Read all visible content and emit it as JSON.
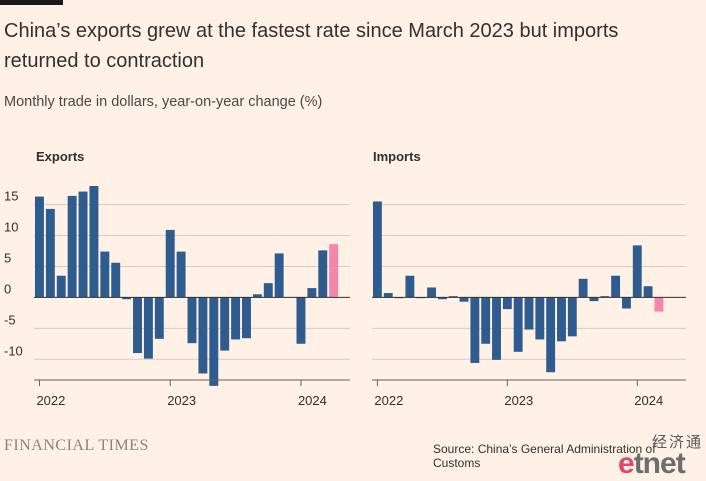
{
  "header": {
    "title": "China’s exports grew at the fastest rate since March 2023 but imports returned to contraction",
    "subtitle": "Monthly trade in dollars, year-on-year change (%)"
  },
  "footer": {
    "brand": "FINANCIAL TIMES",
    "source": "Source: China’s General Administration of Customs"
  },
  "watermark": {
    "chinese": "经济通",
    "logo_e": "e",
    "logo_rest": "tnet"
  },
  "colors": {
    "bar": "#2f5c8f",
    "highlight": "#f486ae",
    "background": "#fff1e5",
    "grid": "#d9cdc3"
  },
  "chart_data": [
    {
      "type": "bar",
      "title": "Exports",
      "ylim": [
        -14,
        18
      ],
      "y_ticks": [
        15,
        10,
        5,
        0,
        -5,
        -10
      ],
      "x_ticks": [
        "2022",
        "2023",
        "2024"
      ],
      "x": [
        "2022-01",
        "2022-02",
        "2022-03",
        "2022-04",
        "2022-05",
        "2022-06",
        "2022-07",
        "2022-08",
        "2022-09",
        "2022-10",
        "2022-11",
        "2022-12",
        "2023-01",
        "2023-02",
        "2023-03",
        "2023-04",
        "2023-05",
        "2023-06",
        "2023-07",
        "2023-08",
        "2023-09",
        "2023-10",
        "2023-11",
        "2023-12",
        "2024-01",
        "2024-02",
        "2024-03",
        "2024-04",
        "2024-05"
      ],
      "values": [
        16.3,
        14.3,
        3.5,
        16.4,
        17.1,
        18.0,
        7.4,
        5.6,
        -0.3,
        -9.0,
        -9.9,
        -6.7,
        10.9,
        7.4,
        -7.4,
        -12.3,
        -14.3,
        -8.6,
        -6.8,
        -6.6,
        0.5,
        2.3,
        7.1,
        null,
        -7.5,
        1.5,
        7.6,
        8.6,
        null
      ],
      "highlight_index": 27,
      "grid": true
    },
    {
      "type": "bar",
      "title": "Imports",
      "ylim": [
        -14,
        18
      ],
      "y_ticks": [
        15,
        10,
        5,
        0,
        -5,
        -10
      ],
      "x_ticks": [
        "2022",
        "2023",
        "2024"
      ],
      "x": [
        "2022-01",
        "2022-02",
        "2022-03",
        "2022-04",
        "2022-05",
        "2022-06",
        "2022-07",
        "2022-08",
        "2022-09",
        "2022-10",
        "2022-11",
        "2022-12",
        "2023-01",
        "2023-02",
        "2023-03",
        "2023-04",
        "2023-05",
        "2023-06",
        "2023-07",
        "2023-08",
        "2023-09",
        "2023-10",
        "2023-11",
        "2023-12",
        "2024-01",
        "2024-02",
        "2024-03",
        "2024-04",
        "2024-05"
      ],
      "values": [
        15.5,
        0.7,
        -0.1,
        3.5,
        -0.1,
        1.6,
        -0.3,
        0.2,
        -0.7,
        -10.6,
        -7.5,
        -10.1,
        -1.9,
        -8.8,
        -5.2,
        -6.8,
        -12.1,
        -7.1,
        -6.3,
        3.0,
        -0.6,
        0.2,
        3.5,
        -1.8,
        8.4,
        1.8,
        -2.3,
        null,
        null
      ],
      "highlight_index": 26,
      "grid": true
    }
  ]
}
